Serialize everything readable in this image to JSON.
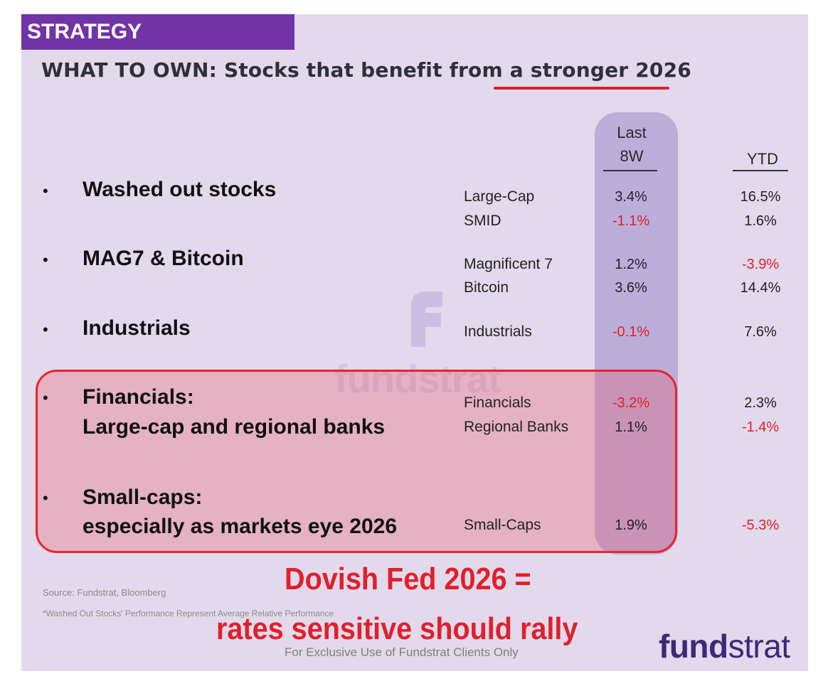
{
  "header": {
    "tag": "STRATEGY",
    "title": "WHAT TO OWN: Stocks that benefit from a stronger 2026"
  },
  "columns": {
    "last8w_line1": "Last",
    "last8w_line2": "8W",
    "ytd": "YTD"
  },
  "bullet_char": "•",
  "groups": [
    {
      "heading": [
        "Washed out stocks"
      ],
      "rows": [
        {
          "label": "Large-Cap",
          "last8w": "3.4%",
          "ytd": "16.5%"
        },
        {
          "label": "SMID",
          "last8w": "-1.1%",
          "ytd": "1.6%"
        }
      ]
    },
    {
      "heading": [
        "MAG7 & Bitcoin"
      ],
      "rows": [
        {
          "label": "Magnificent 7",
          "last8w": "1.2%",
          "ytd": "-3.9%"
        },
        {
          "label": "Bitcoin",
          "last8w": "3.6%",
          "ytd": "14.4%"
        }
      ]
    },
    {
      "heading": [
        "Industrials"
      ],
      "rows": [
        {
          "label": "Industrials",
          "last8w": "-0.1%",
          "ytd": "7.6%"
        }
      ]
    },
    {
      "heading": [
        "Financials:",
        "Large-cap and regional banks"
      ],
      "rows": [
        {
          "label": "Financials",
          "last8w": "-3.2%",
          "ytd": "2.3%"
        },
        {
          "label": "Regional Banks",
          "last8w": "1.1%",
          "ytd": "-1.4%"
        }
      ]
    },
    {
      "heading": [
        "Small-caps:",
        "especially as markets eye 2026"
      ],
      "rows": [
        {
          "label": "Small-Caps",
          "last8w": "1.9%",
          "ytd": "-5.3%"
        }
      ]
    }
  ],
  "watermark": "fundstrat",
  "source": "Source: Fundstrat, Bloomberg",
  "note": "*Washed Out Stocks' Performance Represent Average Relative Performance",
  "callout": {
    "line1": "Dovish Fed 2026 =",
    "line2": "rates sensitive should rally"
  },
  "footer": "For Exclusive Use of Fundstrat Clients Only",
  "logo": {
    "part1": "fund",
    "part2": "strat"
  },
  "colors": {
    "accent_purple": "#7233a6",
    "negative_red": "#e0202a",
    "highlight_red": "#e8242b",
    "logo_navy": "#3a2a78"
  }
}
